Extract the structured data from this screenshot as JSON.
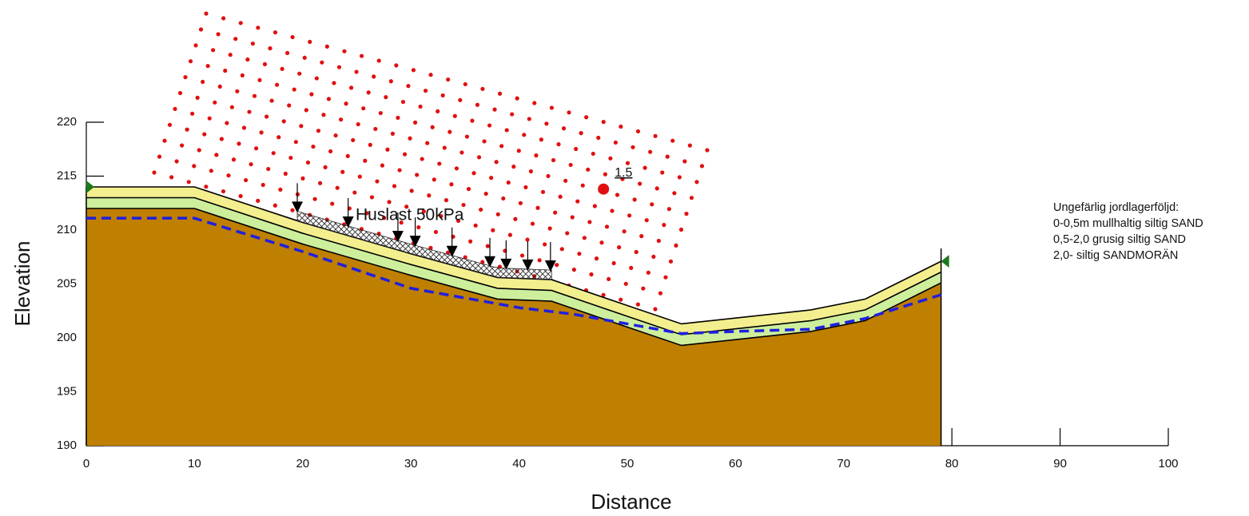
{
  "chart_data": {
    "type": "section",
    "x_label": "Distance",
    "y_label": "Elevation",
    "xlim": [
      0,
      100
    ],
    "ylim": [
      190,
      220
    ],
    "xticks": [
      0,
      10,
      20,
      30,
      40,
      50,
      60,
      70,
      80,
      90,
      100
    ],
    "yticks": [
      190,
      195,
      200,
      205,
      210,
      215,
      220
    ],
    "x": [
      0,
      10,
      20,
      30,
      38,
      43,
      50,
      55,
      67,
      72,
      79
    ],
    "boundaries": [
      [
        214,
        214,
        210.7,
        207.8,
        205.6,
        205.4,
        203,
        201.3,
        202.6,
        203.6,
        207.1
      ],
      [
        213,
        213,
        209.7,
        206.8,
        204.6,
        204.4,
        202,
        200.3,
        201.6,
        202.6,
        206.1
      ],
      [
        212,
        212,
        208.7,
        205.8,
        203.6,
        203.4,
        201,
        199.3,
        200.6,
        201.6,
        205.1
      ]
    ],
    "layer_colors": [
      "#f4ef8e",
      "#cdef9c",
      "#bf7f00"
    ],
    "water_table": {
      "color": "#1f1fe0",
      "x": [
        0,
        10,
        20,
        30,
        40,
        45,
        50,
        55,
        60,
        67,
        72,
        79
      ],
      "y": [
        211.1,
        211.1,
        208,
        204.6,
        202.8,
        202.2,
        201.3,
        200.4,
        200.6,
        200.8,
        201.8,
        204
      ]
    },
    "load": {
      "label": "Huslast 50kPa",
      "x": [
        19.5,
        43
      ],
      "arrows_x": [
        19.5,
        24.2,
        28.8,
        30.4,
        33.8,
        37.3,
        38.8,
        40.8,
        42.9
      ]
    },
    "critical_center": {
      "x": 47.8,
      "y": 213.8,
      "factor_of_safety": 1.5
    },
    "notes": [
      "Ungefärlig jordlagerföljd:",
      "0-0,5m mullhaltig siltig SAND",
      "0,5-2,0 grusig siltig SAND",
      "2,0- siltig SANDMORÄN"
    ]
  }
}
